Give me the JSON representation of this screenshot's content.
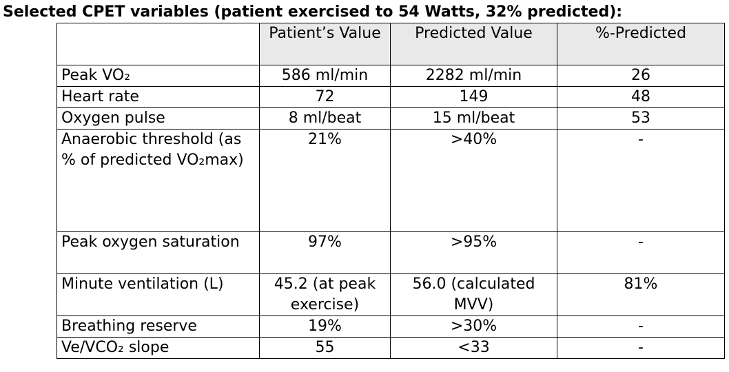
{
  "title": "Selected CPET variables (patient exercised to 54 Watts, 32% predicted):",
  "columns": [
    "",
    "Patient’s Value",
    "Predicted Value",
    "%-Predicted"
  ],
  "rows": [
    {
      "variable": "Peak VO₂",
      "patient": "586 ml/min",
      "predicted": "2282 ml/min",
      "percent": "26"
    },
    {
      "variable": "Heart rate",
      "patient": "72",
      "predicted": "149",
      "percent": "48"
    },
    {
      "variable": "Oxygen pulse",
      "patient": "8 ml/beat",
      "predicted": "15 ml/beat",
      "percent": "53"
    },
    {
      "variable": "Anaerobic threshold (as % of predicted VO₂max)",
      "patient": "21%",
      "predicted": ">40%",
      "percent": "-"
    },
    {
      "variable": "Peak oxygen saturation",
      "patient": "97%",
      "predicted": ">95%",
      "percent": "-"
    },
    {
      "variable": "Minute ventilation (L)",
      "patient": "45.2 (at peak exercise)",
      "predicted": "56.0 (calculated MVV)",
      "percent": "81%"
    },
    {
      "variable": "Breathing reserve",
      "patient": "19%",
      "predicted": ">30%",
      "percent": "-"
    },
    {
      "variable": "Ve/VCO₂ slope",
      "patient": "55",
      "predicted": "<33",
      "percent": "-"
    }
  ]
}
